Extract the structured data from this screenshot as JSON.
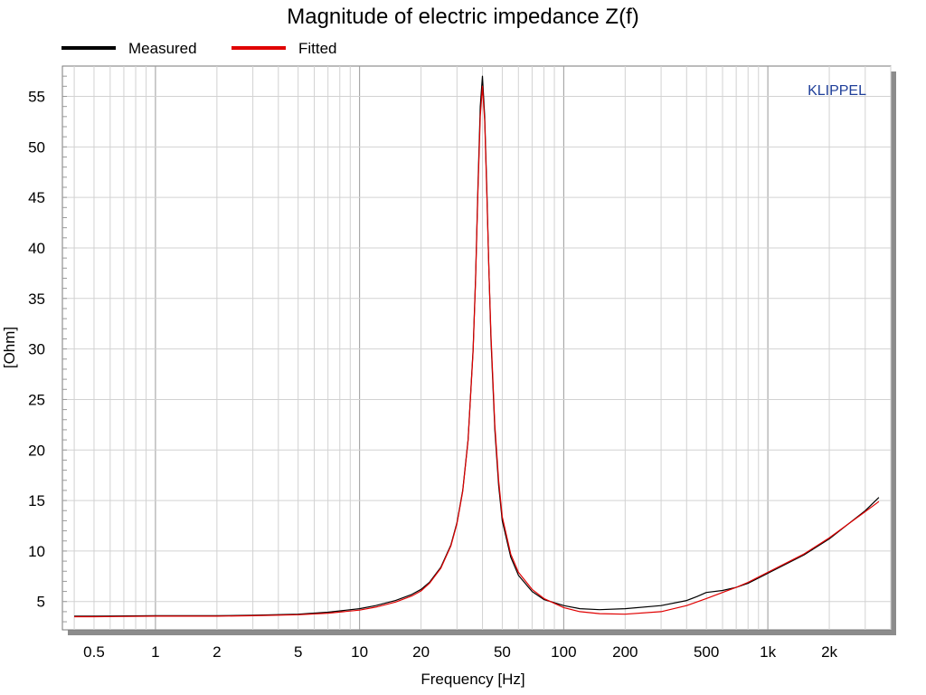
{
  "chart_data": {
    "type": "line",
    "title": "Magnitude of electric impedance Z(f)",
    "xlabel": "Frequency [Hz]",
    "ylabel": "[Ohm]",
    "x_scale": "log",
    "xlim": [
      0.35,
      4000
    ],
    "ylim": [
      2.2,
      58
    ],
    "grid": true,
    "legend": "top-left",
    "watermark": "KLIPPEL",
    "x_ticks": [
      {
        "value": 0.5,
        "label": "0.5"
      },
      {
        "value": 1,
        "label": "1"
      },
      {
        "value": 2,
        "label": "2"
      },
      {
        "value": 5,
        "label": "5"
      },
      {
        "value": 10,
        "label": "10"
      },
      {
        "value": 20,
        "label": "20"
      },
      {
        "value": 50,
        "label": "50"
      },
      {
        "value": 100,
        "label": "100"
      },
      {
        "value": 200,
        "label": "200"
      },
      {
        "value": 500,
        "label": "500"
      },
      {
        "value": 1000,
        "label": "1k"
      },
      {
        "value": 2000,
        "label": "2k"
      }
    ],
    "y_ticks": [
      {
        "value": 5,
        "label": "5"
      },
      {
        "value": 10,
        "label": "10"
      },
      {
        "value": 15,
        "label": "15"
      },
      {
        "value": 20,
        "label": "20"
      },
      {
        "value": 25,
        "label": "25"
      },
      {
        "value": 30,
        "label": "30"
      },
      {
        "value": 35,
        "label": "35"
      },
      {
        "value": 40,
        "label": "40"
      },
      {
        "value": 45,
        "label": "45"
      },
      {
        "value": 50,
        "label": "50"
      },
      {
        "value": 55,
        "label": "55"
      }
    ],
    "series": [
      {
        "name": "Measured",
        "color": "#000000",
        "x": [
          0.4,
          0.5,
          1,
          2,
          3,
          5,
          7,
          10,
          12,
          15,
          18,
          20,
          22,
          25,
          28,
          30,
          32,
          34,
          36,
          37,
          38,
          39,
          40,
          41,
          42,
          43,
          44,
          46,
          48,
          50,
          55,
          60,
          70,
          80,
          100,
          120,
          150,
          200,
          300,
          400,
          450,
          500,
          600,
          700,
          800,
          1000,
          1500,
          2000,
          3000,
          3500
        ],
        "y": [
          3.55,
          3.55,
          3.6,
          3.6,
          3.65,
          3.75,
          3.95,
          4.3,
          4.6,
          5.1,
          5.7,
          6.2,
          6.9,
          8.4,
          10.6,
          12.8,
          16.0,
          21.0,
          30.0,
          37.0,
          46.0,
          54.0,
          57.0,
          53.0,
          46.0,
          38.0,
          31.0,
          22.0,
          16.5,
          13.0,
          9.4,
          7.6,
          6.0,
          5.2,
          4.6,
          4.3,
          4.2,
          4.3,
          4.6,
          5.1,
          5.5,
          5.9,
          6.1,
          6.4,
          6.8,
          7.8,
          9.6,
          11.2,
          14.0,
          15.3
        ]
      },
      {
        "name": "Fitted",
        "color": "#e00000",
        "x": [
          0.4,
          0.5,
          1,
          2,
          3,
          5,
          7,
          10,
          12,
          15,
          18,
          20,
          22,
          25,
          28,
          30,
          32,
          34,
          36,
          37,
          38,
          39,
          40,
          41,
          42,
          43,
          44,
          46,
          48,
          50,
          55,
          60,
          70,
          80,
          100,
          120,
          150,
          200,
          300,
          400,
          500,
          600,
          700,
          800,
          1000,
          1500,
          2000,
          3000,
          3500
        ],
        "y": [
          3.5,
          3.5,
          3.55,
          3.55,
          3.6,
          3.7,
          3.85,
          4.15,
          4.45,
          4.95,
          5.55,
          6.05,
          6.8,
          8.3,
          10.5,
          12.7,
          15.9,
          20.9,
          29.8,
          36.8,
          45.5,
          53.0,
          56.0,
          52.5,
          45.5,
          38.0,
          31.5,
          22.5,
          17.0,
          13.4,
          9.7,
          7.9,
          6.2,
          5.3,
          4.4,
          4.0,
          3.8,
          3.75,
          4.0,
          4.6,
          5.3,
          5.9,
          6.4,
          6.9,
          7.9,
          9.7,
          11.3,
          13.9,
          14.9
        ]
      }
    ]
  }
}
